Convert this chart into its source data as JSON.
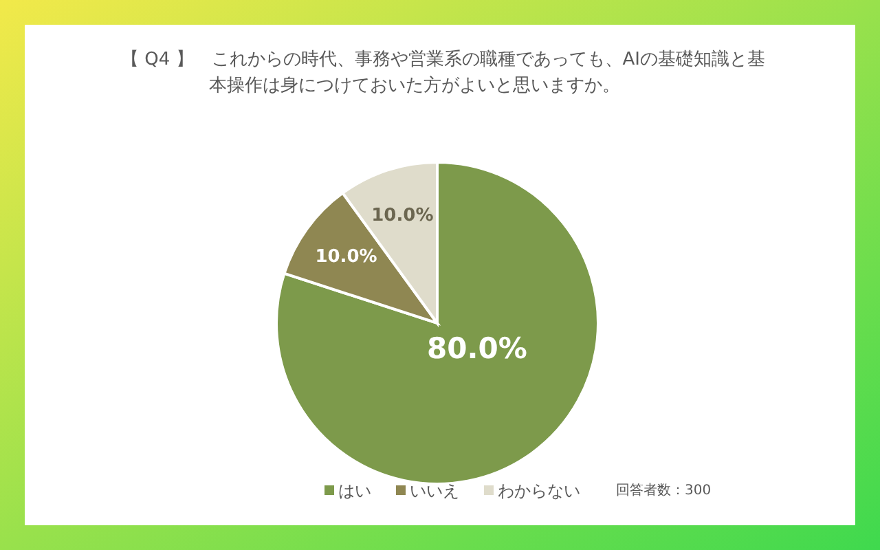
{
  "chart_data": {
    "type": "pie",
    "title": "【 Q4 】　これからの時代、事務や営業系の職種であっても、AIの基礎知識と基本操作は身につけておいた方がよいと思いますか。",
    "categories": [
      "はい",
      "いいえ",
      "わからない"
    ],
    "values": [
      80,
      10,
      10
    ],
    "colors": [
      "#7d9a4b",
      "#8f8752",
      "#dfdccb"
    ],
    "value_labels": [
      "80.0%",
      "10.0%",
      "10.0%"
    ],
    "legend": "bottom",
    "annotations": [
      "回答者数：300"
    ]
  }
}
